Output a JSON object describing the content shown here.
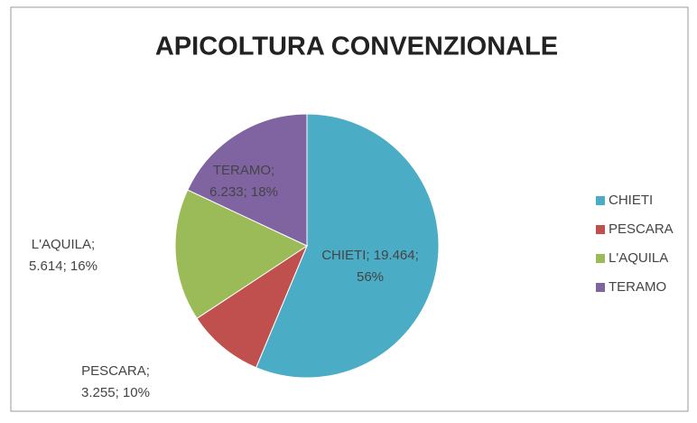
{
  "chart_data": {
    "type": "pie",
    "title": "APICOLTURA CONVENZIONALE",
    "categories": [
      "CHIETI",
      "PESCARA",
      "L'AQUILA",
      "TERAMO"
    ],
    "values": [
      19464,
      3255,
      5614,
      6233
    ],
    "value_labels": [
      [
        "CHIETI; 19.464;",
        "56%"
      ],
      [
        "PESCARA;",
        "3.255; 10%"
      ],
      [
        "L'AQUILA;",
        "5.614; 16%"
      ],
      [
        "TERAMO;",
        "6.233; 18%"
      ]
    ],
    "colors": [
      "#4bacc6",
      "#c0504d",
      "#9bbb59",
      "#8064a2"
    ],
    "legend": "right"
  }
}
